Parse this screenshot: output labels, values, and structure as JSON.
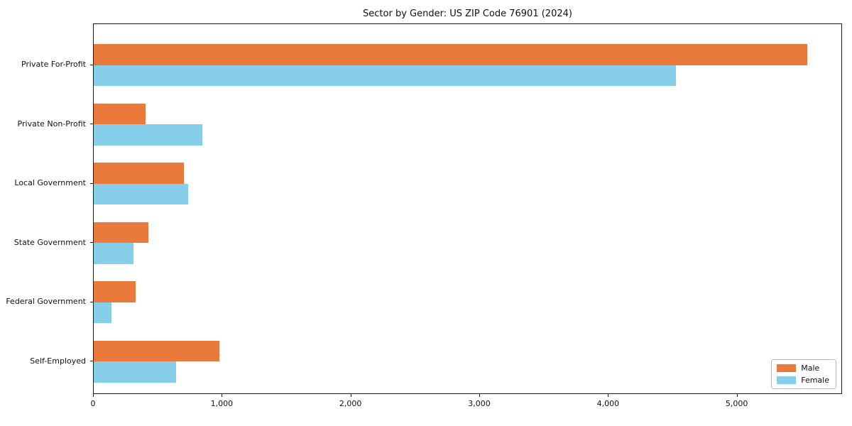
{
  "chart_data": {
    "type": "bar",
    "orientation": "horizontal",
    "title": "Sector by Gender: US ZIP Code 76901 (2024)",
    "categories": [
      "Private For-Profit",
      "Private Non-Profit",
      "Local Government",
      "State Government",
      "Federal Government",
      "Self-Employed"
    ],
    "series": [
      {
        "name": "Male",
        "color": "#E97A3C",
        "values": [
          5540,
          400,
          700,
          425,
          327,
          978
        ]
      },
      {
        "name": "Female",
        "color": "#87CEEB",
        "values": [
          4520,
          845,
          735,
          307,
          140,
          640
        ]
      }
    ],
    "xlabel": "",
    "ylabel": "",
    "xlim": [
      0,
      5818
    ],
    "xticks": {
      "values": [
        0,
        1000,
        2000,
        3000,
        4000,
        5000
      ],
      "labels": [
        "0",
        "1,000",
        "2,000",
        "3,000",
        "4,000",
        "5,000"
      ]
    },
    "grid": false,
    "legend_position": "lower right",
    "plot_background": "#ffffff"
  }
}
